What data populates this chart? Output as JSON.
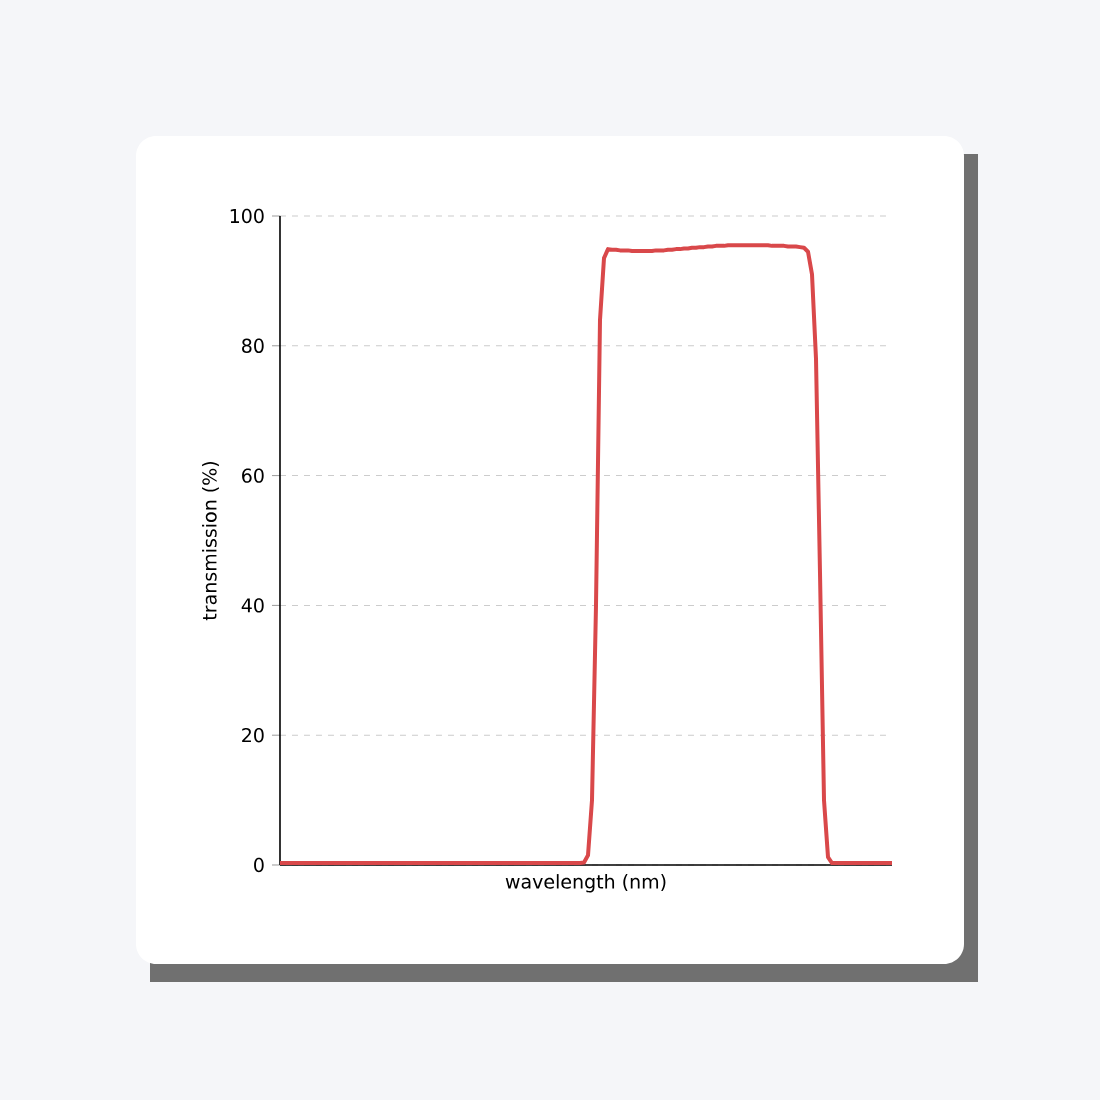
{
  "chart_data": {
    "type": "line",
    "xlabel": "wavelength (nm)",
    "ylabel": "transmission (%)",
    "categories": [
      null,
      null,
      null,
      null,
      null,
      null,
      null,
      null,
      null,
      null,
      null,
      null,
      null,
      null,
      null,
      null,
      null,
      null,
      null,
      null,
      null,
      null,
      null,
      null,
      null,
      null,
      null,
      null,
      null,
      null,
      null,
      null,
      null,
      null,
      null,
      null,
      null,
      null,
      null,
      null,
      null,
      null,
      null,
      null,
      null,
      null,
      null,
      null,
      null,
      null,
      null,
      null,
      null,
      null,
      null,
      null,
      null,
      null,
      null,
      null,
      null,
      null,
      null,
      null,
      null,
      null,
      null,
      null,
      null,
      null,
      null,
      null,
      null,
      null,
      null,
      null,
      null,
      null,
      null,
      null,
      null,
      null,
      null,
      null,
      null,
      null,
      null,
      null,
      null,
      null,
      null,
      null,
      null,
      null,
      null,
      null,
      null,
      null,
      null,
      null,
      null,
      null,
      null,
      null,
      null,
      null,
      null,
      null,
      null,
      null,
      null,
      null,
      null,
      null,
      null,
      null,
      null,
      null,
      null,
      null,
      null,
      null,
      null,
      null,
      null,
      null,
      null,
      null,
      null,
      null,
      null,
      null,
      null,
      null,
      null,
      null,
      null,
      null,
      null,
      null,
      null,
      null,
      null,
      null,
      null,
      null,
      null,
      null,
      null,
      null,
      null,
      null,
      null,
      null
    ],
    "series": [
      {
        "color": "#d9484a",
        "values": [
          0.3,
          0.3,
          0.3,
          0.3,
          0.3,
          0.3,
          0.3,
          0.3,
          0.3,
          0.3,
          0.3,
          0.3,
          0.3,
          0.3,
          0.3,
          0.3,
          0.3,
          0.3,
          0.3,
          0.3,
          0.3,
          0.3,
          0.3,
          0.3,
          0.3,
          0.3,
          0.3,
          0.3,
          0.3,
          0.3,
          0.3,
          0.3,
          0.3,
          0.3,
          0.3,
          0.3,
          0.3,
          0.3,
          0.3,
          0.3,
          0.3,
          0.3,
          0.3,
          0.3,
          0.3,
          0.3,
          0.3,
          0.3,
          0.3,
          0.3,
          0.3,
          0.3,
          0.3,
          0.3,
          0.3,
          0.3,
          0.3,
          0.3,
          0.3,
          0.3,
          0.3,
          0.3,
          0.3,
          0.3,
          0.3,
          0.3,
          0.3,
          0.3,
          0.3,
          0.3,
          0.3,
          0.3,
          0.3,
          0.3,
          0.3,
          0.3,
          0.4,
          1.5,
          10,
          40,
          84,
          93.5,
          94.9,
          94.8,
          94.8,
          94.7,
          94.7,
          94.7,
          94.6,
          94.6,
          94.6,
          94.6,
          94.6,
          94.6,
          94.7,
          94.7,
          94.7,
          94.8,
          94.8,
          94.9,
          94.9,
          95.0,
          95.0,
          95.1,
          95.1,
          95.2,
          95.2,
          95.3,
          95.3,
          95.4,
          95.4,
          95.4,
          95.5,
          95.5,
          95.5,
          95.5,
          95.5,
          95.5,
          95.5,
          95.5,
          95.5,
          95.5,
          95.5,
          95.4,
          95.4,
          95.4,
          95.4,
          95.3,
          95.3,
          95.3,
          95.2,
          95.1,
          94.5,
          91,
          78,
          45,
          10,
          1.2,
          0.3,
          0.3,
          0.3,
          0.3,
          0.3,
          0.3,
          0.3,
          0.3,
          0.3,
          0.3,
          0.3,
          0.3,
          0.3,
          0.3,
          0.3,
          0.3
        ]
      }
    ],
    "ylim": [
      0,
      100
    ],
    "yticks": [
      0,
      20,
      40,
      60,
      80,
      100
    ],
    "grid": "y",
    "tick_labels": "y",
    "line_style": "solid",
    "marker": "none"
  }
}
